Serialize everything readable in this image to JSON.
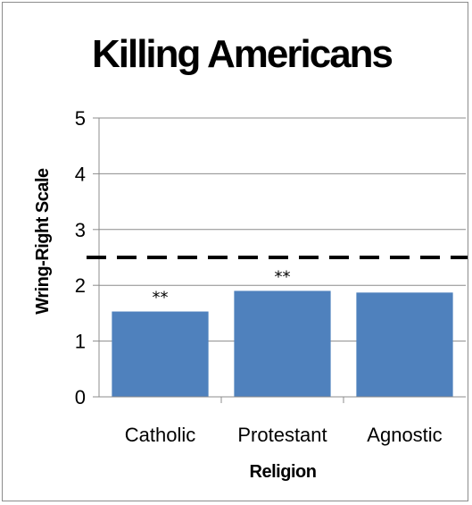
{
  "chart_data": {
    "type": "bar",
    "title": "Killing Americans",
    "xlabel": "Religion",
    "ylabel": "Wring-Right Scale",
    "categories": [
      "Catholic",
      "Protestant",
      "Agnostic"
    ],
    "values": [
      1.53,
      1.9,
      1.87
    ],
    "ylim": [
      0,
      5
    ],
    "yticks": [
      "0",
      "1",
      "2",
      "3",
      "4",
      "5"
    ],
    "grid": true,
    "bar_color": "#4f81bd",
    "reference_line": {
      "value": 2.5,
      "style": "dashed",
      "color": "#000000"
    },
    "annotations": [
      {
        "category": "Catholic",
        "text": "**"
      },
      {
        "category": "Protestant",
        "text": "**"
      }
    ]
  }
}
